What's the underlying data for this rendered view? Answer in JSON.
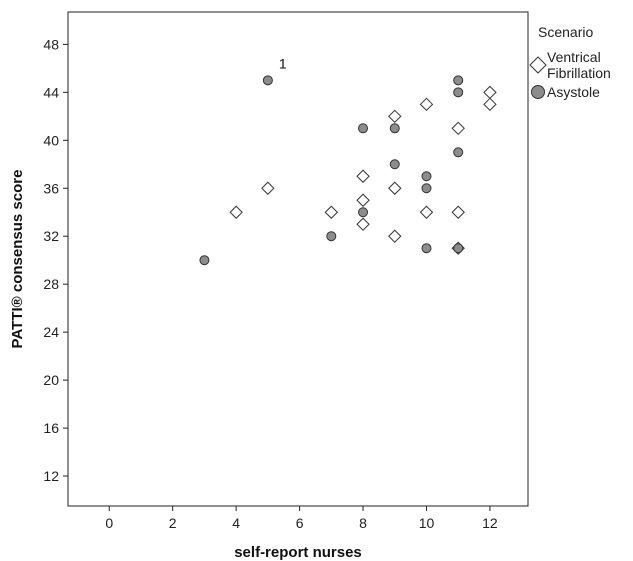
{
  "chart_data": {
    "type": "scatter",
    "xlabel": "self-report nurses",
    "ylabel": "PATTI® consensus score",
    "xlim": [
      -1.3,
      13.2
    ],
    "ylim": [
      9.5,
      50.7
    ],
    "xticks": [
      0,
      2,
      4,
      6,
      8,
      10,
      12
    ],
    "yticks": [
      12,
      16,
      20,
      24,
      28,
      32,
      36,
      40,
      44,
      48
    ],
    "grid": false,
    "legend": {
      "title": "Scenario",
      "placement": "right",
      "entries": [
        {
          "label_lines": [
            "Ventrical",
            "Fibrillation"
          ],
          "marker": "diamond"
        },
        {
          "label_lines": [
            "Asystole"
          ],
          "marker": "circle"
        }
      ]
    },
    "colors": {
      "circle_fill": "#8c8c8c",
      "diamond_fill": "#ffffff",
      "marker_stroke": "#333333"
    },
    "series": [
      {
        "marker": "diamond",
        "points": [
          {
            "x": 4,
            "y": 34
          },
          {
            "x": 5,
            "y": 36
          },
          {
            "x": 7,
            "y": 34
          },
          {
            "x": 8,
            "y": 37
          },
          {
            "x": 8,
            "y": 35
          },
          {
            "x": 8,
            "y": 33
          },
          {
            "x": 9,
            "y": 42
          },
          {
            "x": 9,
            "y": 36
          },
          {
            "x": 9,
            "y": 32
          },
          {
            "x": 10,
            "y": 43
          },
          {
            "x": 10,
            "y": 34
          },
          {
            "x": 11,
            "y": 41
          },
          {
            "x": 11,
            "y": 34
          },
          {
            "x": 11,
            "y": 31
          },
          {
            "x": 12,
            "y": 44
          },
          {
            "x": 12,
            "y": 43
          }
        ]
      },
      {
        "marker": "circle",
        "points": [
          {
            "x": 3,
            "y": 30
          },
          {
            "x": 5,
            "y": 45
          },
          {
            "x": 7,
            "y": 32
          },
          {
            "x": 8,
            "y": 41
          },
          {
            "x": 8,
            "y": 34
          },
          {
            "x": 9,
            "y": 41
          },
          {
            "x": 9,
            "y": 38
          },
          {
            "x": 10,
            "y": 37
          },
          {
            "x": 10,
            "y": 36
          },
          {
            "x": 10,
            "y": 31
          },
          {
            "x": 11,
            "y": 45
          },
          {
            "x": 11,
            "y": 44
          },
          {
            "x": 11,
            "y": 39
          },
          {
            "x": 11,
            "y": 31
          }
        ]
      }
    ],
    "annotations": [
      {
        "text": "1",
        "x": 5,
        "y": 45
      }
    ]
  }
}
